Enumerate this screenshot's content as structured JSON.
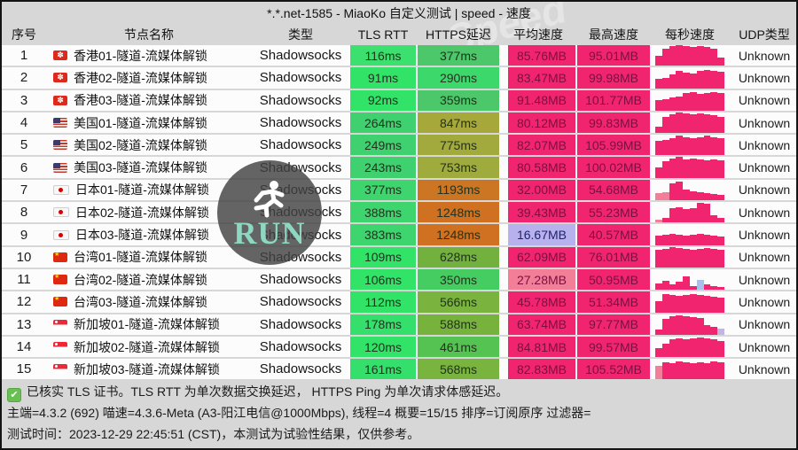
{
  "title": "*.*.net-1585 - MiaoKo 自定义测试 | speed - 速度",
  "columns": [
    "序号",
    "节点名称",
    "类型",
    "TLS RTT",
    "HTTPS延迟",
    "平均速度",
    "最高速度",
    "每秒速度",
    "UDP类型"
  ],
  "accent_colors": {
    "spark_pink": "#f1256f",
    "deep_pink": "#f1256f",
    "lavender": "#b7b2ee",
    "light_pink": "#f27e97",
    "green_fast": "#35e06c",
    "olive": "#a6a83a",
    "orange": "#cf7120",
    "check_green": "#6abf54"
  },
  "background_watermark": "Speed",
  "watermark": {
    "label": "RUN",
    "icon": "runner-icon"
  },
  "rows": [
    {
      "no": "1",
      "flag": "hk",
      "name": "香港01-隧道-流媒体解锁",
      "type": "Shadowsocks",
      "tls": "116ms",
      "tls_bg": "#3ce06e",
      "https": "377ms",
      "https_bg": "#4cc76a",
      "avg": "85.76MB",
      "avg_bg": "#f1256f",
      "avg_fg": "#7a1040",
      "max": "95.01MB",
      "udp": "Unknown",
      "bars": [
        0.5,
        0.85,
        0.95,
        1,
        0.95,
        0.9,
        0.95,
        0.9,
        0.85,
        0.4
      ],
      "bar_colors": {}
    },
    {
      "no": "2",
      "flag": "hk",
      "name": "香港02-隧道-流媒体解锁",
      "type": "Shadowsocks",
      "tls": "91ms",
      "tls_bg": "#31e468",
      "https": "290ms",
      "https_bg": "#3cd86c",
      "avg": "83.47MB",
      "avg_bg": "#f1256f",
      "avg_fg": "#7a1040",
      "max": "99.98MB",
      "udp": "Unknown",
      "bars": [
        0.45,
        0.5,
        0.65,
        0.85,
        0.75,
        0.7,
        0.85,
        0.9,
        0.85,
        0.8
      ],
      "bar_colors": {}
    },
    {
      "no": "3",
      "flag": "hk",
      "name": "香港03-隧道-流媒体解锁",
      "type": "Shadowsocks",
      "tls": "92ms",
      "tls_bg": "#31e468",
      "https": "359ms",
      "https_bg": "#4cc76a",
      "avg": "91.48MB",
      "avg_bg": "#f1256f",
      "avg_fg": "#7a1040",
      "max": "101.77MB",
      "udp": "Unknown",
      "bars": [
        0.5,
        0.55,
        0.65,
        0.7,
        0.85,
        0.9,
        0.8,
        0.85,
        0.9,
        0.85
      ],
      "bar_colors": {}
    },
    {
      "no": "4",
      "flag": "us",
      "name": "美国01-隧道-流媒体解锁",
      "type": "Shadowsocks",
      "tls": "264ms",
      "tls_bg": "#3fd06f",
      "https": "847ms",
      "https_bg": "#a6a83a",
      "avg": "80.12MB",
      "avg_bg": "#f1256f",
      "avg_fg": "#7a1040",
      "max": "99.83MB",
      "udp": "Unknown",
      "bars": [
        0.3,
        0.8,
        0.9,
        1,
        0.95,
        0.9,
        0.95,
        0.9,
        0.85,
        0.8
      ],
      "bar_colors": {}
    },
    {
      "no": "5",
      "flag": "us",
      "name": "美国02-隧道-流媒体解锁",
      "type": "Shadowsocks",
      "tls": "249ms",
      "tls_bg": "#3fd06f",
      "https": "775ms",
      "https_bg": "#a2aa3d",
      "avg": "82.07MB",
      "avg_bg": "#f1256f",
      "avg_fg": "#7a1040",
      "max": "105.99MB",
      "udp": "Unknown",
      "bars": [
        0.7,
        0.75,
        0.85,
        0.95,
        0.9,
        0.85,
        0.9,
        0.95,
        0.9,
        0.85
      ],
      "bar_colors": {}
    },
    {
      "no": "6",
      "flag": "us",
      "name": "美国03-隧道-流媒体解锁",
      "type": "Shadowsocks",
      "tls": "243ms",
      "tls_bg": "#3fd06f",
      "https": "753ms",
      "https_bg": "#a0ab3e",
      "avg": "80.58MB",
      "avg_bg": "#f1256f",
      "avg_fg": "#7a1040",
      "max": "100.02MB",
      "udp": "Unknown",
      "bars": [
        0.5,
        0.8,
        0.95,
        1,
        0.9,
        0.95,
        0.9,
        0.85,
        0.9,
        0.85
      ],
      "bar_colors": {}
    },
    {
      "no": "7",
      "flag": "jp",
      "name": "日本01-隧道-流媒体解锁",
      "type": "Shadowsocks",
      "tls": "377ms",
      "tls_bg": "#3ed46e",
      "https": "1193ms",
      "https_bg": "#cc7522",
      "avg": "32.00MB",
      "avg_bg": "#f1256f",
      "avg_fg": "#7a1040",
      "max": "54.68MB",
      "udp": "Unknown",
      "bars": [
        0.35,
        0.4,
        0.8,
        0.9,
        0.5,
        0.45,
        0.4,
        0.35,
        0.3,
        0.25
      ],
      "bar_colors": {
        "0": "#f27e97",
        "1": "#f27e97"
      }
    },
    {
      "no": "8",
      "flag": "jp",
      "name": "日本02-隧道-流媒体解锁",
      "type": "Shadowsocks",
      "tls": "388ms",
      "tls_bg": "#3ed46e",
      "https": "1248ms",
      "https_bg": "#cf7120",
      "avg": "39.43MB",
      "avg_bg": "#f1256f",
      "avg_fg": "#7a1040",
      "max": "55.23MB",
      "udp": "Unknown",
      "bars": [
        0.15,
        0.25,
        0.7,
        0.75,
        0.65,
        0.7,
        0.95,
        0.9,
        0.35,
        0.25
      ],
      "bar_colors": {
        "0": "#f27e97"
      }
    },
    {
      "no": "9",
      "flag": "jp",
      "name": "日本03-隧道-流媒体解锁",
      "type": "Shadowsocks",
      "tls": "383ms",
      "tls_bg": "#3ed46e",
      "https": "1248ms",
      "https_bg": "#cf7120",
      "avg": "16.67MB",
      "avg_bg": "#b7b2ee",
      "avg_fg": "#23236e",
      "max": "40.57MB",
      "udp": "Unknown",
      "bars": [
        0.45,
        0.5,
        0.55,
        0.5,
        0.45,
        0.5,
        0.55,
        0.5,
        0.45,
        0.4
      ],
      "bar_colors": {}
    },
    {
      "no": "10",
      "flag": "cn",
      "name": "台湾01-隧道-流媒体解锁",
      "type": "Shadowsocks",
      "tls": "109ms",
      "tls_bg": "#31e468",
      "https": "628ms",
      "https_bg": "#72b13d",
      "avg": "62.09MB",
      "avg_bg": "#f1256f",
      "avg_fg": "#7a1040",
      "max": "76.01MB",
      "udp": "Unknown",
      "bars": [
        0.85,
        0.9,
        1,
        0.95,
        0.9,
        0.85,
        0.9,
        0.95,
        0.9,
        0.85
      ],
      "bar_colors": {}
    },
    {
      "no": "11",
      "flag": "cn",
      "name": "台湾02-隧道-流媒体解锁",
      "type": "Shadowsocks",
      "tls": "106ms",
      "tls_bg": "#31e468",
      "https": "350ms",
      "https_bg": "#45cd62",
      "avg": "27.28MB",
      "avg_bg": "#f27e97",
      "avg_fg": "#7a1040",
      "max": "50.95MB",
      "udp": "Unknown",
      "bars": [
        0.3,
        0.45,
        0.25,
        0.4,
        0.65,
        0.2,
        0.5,
        0.25,
        0.2,
        0.15
      ],
      "bar_colors": {
        "6": "#a9c0ea"
      }
    },
    {
      "no": "12",
      "flag": "cn",
      "name": "台湾03-隧道-流媒体解锁",
      "type": "Shadowsocks",
      "tls": "112ms",
      "tls_bg": "#31e468",
      "https": "566ms",
      "https_bg": "#7ab43e",
      "avg": "45.78MB",
      "avg_bg": "#f1256f",
      "avg_fg": "#7a1040",
      "max": "51.34MB",
      "udp": "Unknown",
      "bars": [
        0.55,
        0.9,
        0.85,
        0.8,
        0.85,
        0.9,
        0.85,
        0.8,
        0.75,
        0.7
      ],
      "bar_colors": {}
    },
    {
      "no": "13",
      "flag": "sg",
      "name": "新加坡01-隧道-流媒体解锁",
      "type": "Shadowsocks",
      "tls": "178ms",
      "tls_bg": "#35df6c",
      "https": "588ms",
      "https_bg": "#77b23d",
      "avg": "63.74MB",
      "avg_bg": "#f1256f",
      "avg_fg": "#7a1040",
      "max": "97.77MB",
      "udp": "Unknown",
      "bars": [
        0.25,
        0.75,
        0.9,
        0.95,
        0.9,
        0.85,
        0.8,
        0.45,
        0.4,
        0.3
      ],
      "bar_colors": {
        "9": "#c3b4e6"
      }
    },
    {
      "no": "14",
      "flag": "sg",
      "name": "新加坡02-隧道-流媒体解锁",
      "type": "Shadowsocks",
      "tls": "120ms",
      "tls_bg": "#31e468",
      "https": "461ms",
      "https_bg": "#55c351",
      "avg": "84.81MB",
      "avg_bg": "#f1256f",
      "avg_fg": "#7a1040",
      "max": "99.57MB",
      "udp": "Unknown",
      "bars": [
        0.45,
        0.65,
        0.85,
        0.9,
        0.85,
        0.9,
        0.95,
        0.9,
        0.85,
        0.8
      ],
      "bar_colors": {}
    },
    {
      "no": "15",
      "flag": "sg",
      "name": "新加坡03-隧道-流媒体解锁",
      "type": "Shadowsocks",
      "tls": "161ms",
      "tls_bg": "#35df6c",
      "https": "568ms",
      "https_bg": "#79b43e",
      "avg": "82.83MB",
      "avg_bg": "#f1256f",
      "avg_fg": "#7a1040",
      "max": "105.52MB",
      "udp": "Unknown",
      "bars": [
        0.65,
        0.85,
        0.8,
        0.9,
        0.85,
        0.8,
        0.85,
        0.8,
        0.9,
        0.85
      ],
      "bar_colors": {
        "0": "#f27e97"
      }
    }
  ],
  "footer": {
    "line1": "已核实 TLS 证书。TLS RTT 为单次数据交换延迟， HTTPS Ping 为单次请求体感延迟。",
    "line2": "主端=4.3.2 (692) 喵速=4.3.6-Meta (A3-阳江电信@1000Mbps), 线程=4 概要=15/15 排序=订阅原序 过滤器=",
    "line3": "测试时间：2023-12-29 22:45:51 (CST)，本测试为试验性结果，仅供参考。"
  }
}
